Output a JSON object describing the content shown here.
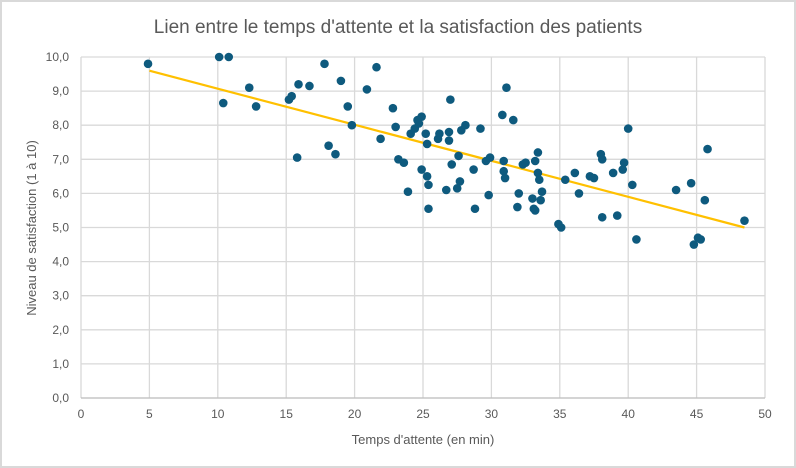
{
  "chart_data": {
    "type": "scatter",
    "title": "Lien entre le temps d'attente et la satisfaction des patients",
    "xlabel": "Temps d'attente (en min)",
    "ylabel": "Niveau de satisfaction (1 à 10)",
    "xlim": [
      0,
      50
    ],
    "ylim": [
      0,
      10
    ],
    "x_ticks": [
      "0",
      "5",
      "10",
      "15",
      "20",
      "25",
      "30",
      "35",
      "40",
      "45",
      "50"
    ],
    "y_ticks": [
      "0,0",
      "1,0",
      "2,0",
      "3,0",
      "4,0",
      "5,0",
      "6,0",
      "7,0",
      "8,0",
      "9,0",
      "10,0"
    ],
    "grid": true,
    "legend": "none",
    "colors": {
      "points": "#0e5a7e",
      "trendline": "#ffc000",
      "grid": "#d9d9d9",
      "text": "#595959"
    },
    "series": [
      {
        "name": "Satisfaction",
        "points": [
          [
            4.9,
            9.8
          ],
          [
            10.1,
            10.0
          ],
          [
            10.8,
            10.0
          ],
          [
            10.4,
            8.65
          ],
          [
            12.3,
            9.1
          ],
          [
            12.8,
            8.55
          ],
          [
            15.2,
            8.75
          ],
          [
            15.4,
            8.85
          ],
          [
            15.9,
            9.2
          ],
          [
            15.8,
            7.05
          ],
          [
            16.7,
            9.15
          ],
          [
            17.8,
            9.8
          ],
          [
            18.1,
            7.4
          ],
          [
            18.6,
            7.15
          ],
          [
            19.0,
            9.3
          ],
          [
            19.5,
            8.55
          ],
          [
            19.8,
            8.0
          ],
          [
            20.9,
            9.05
          ],
          [
            21.6,
            9.7
          ],
          [
            21.9,
            7.6
          ],
          [
            22.8,
            8.5
          ],
          [
            23.0,
            7.95
          ],
          [
            23.2,
            7.0
          ],
          [
            23.6,
            6.9
          ],
          [
            23.9,
            6.05
          ],
          [
            24.1,
            7.75
          ],
          [
            24.4,
            7.9
          ],
          [
            24.6,
            8.15
          ],
          [
            24.9,
            8.25
          ],
          [
            24.7,
            8.05
          ],
          [
            25.2,
            7.75
          ],
          [
            25.3,
            7.45
          ],
          [
            25.3,
            6.5
          ],
          [
            25.4,
            6.25
          ],
          [
            25.4,
            5.55
          ],
          [
            24.9,
            6.7
          ],
          [
            26.2,
            7.75
          ],
          [
            26.1,
            7.6
          ],
          [
            26.9,
            7.8
          ],
          [
            26.9,
            7.55
          ],
          [
            27.0,
            8.75
          ],
          [
            27.1,
            6.85
          ],
          [
            26.7,
            6.1
          ],
          [
            27.6,
            7.1
          ],
          [
            27.7,
            6.35
          ],
          [
            27.5,
            6.15
          ],
          [
            27.8,
            7.85
          ],
          [
            28.1,
            8.0
          ],
          [
            28.7,
            6.7
          ],
          [
            28.8,
            5.55
          ],
          [
            29.2,
            7.9
          ],
          [
            29.6,
            6.95
          ],
          [
            29.9,
            7.05
          ],
          [
            29.8,
            5.95
          ],
          [
            30.8,
            8.3
          ],
          [
            30.9,
            6.95
          ],
          [
            30.9,
            6.65
          ],
          [
            31.0,
            6.45
          ],
          [
            31.1,
            9.1
          ],
          [
            31.6,
            8.15
          ],
          [
            31.9,
            5.6
          ],
          [
            32.0,
            6.0
          ],
          [
            32.3,
            6.85
          ],
          [
            32.5,
            6.9
          ],
          [
            33.0,
            5.85
          ],
          [
            33.1,
            5.55
          ],
          [
            33.2,
            5.5
          ],
          [
            33.2,
            6.95
          ],
          [
            33.4,
            7.2
          ],
          [
            33.4,
            6.6
          ],
          [
            33.5,
            6.4
          ],
          [
            33.6,
            5.8
          ],
          [
            33.7,
            6.05
          ],
          [
            34.9,
            5.1
          ],
          [
            35.1,
            5.0
          ],
          [
            35.4,
            6.4
          ],
          [
            36.1,
            6.6
          ],
          [
            36.4,
            6.0
          ],
          [
            37.2,
            6.5
          ],
          [
            37.5,
            6.45
          ],
          [
            38.0,
            7.15
          ],
          [
            38.1,
            7.0
          ],
          [
            38.1,
            5.3
          ],
          [
            38.9,
            6.6
          ],
          [
            39.2,
            5.35
          ],
          [
            39.6,
            6.7
          ],
          [
            39.7,
            6.9
          ],
          [
            40.0,
            7.9
          ],
          [
            40.3,
            6.25
          ],
          [
            40.6,
            4.65
          ],
          [
            43.5,
            6.1
          ],
          [
            44.6,
            6.3
          ],
          [
            44.8,
            4.5
          ],
          [
            45.1,
            4.7
          ],
          [
            45.3,
            4.65
          ],
          [
            45.6,
            5.8
          ],
          [
            45.8,
            7.3
          ],
          [
            48.5,
            5.2
          ]
        ]
      }
    ],
    "trendline": {
      "type": "linear",
      "x_start": 5.0,
      "y_start": 9.6,
      "x_end": 48.5,
      "y_end": 5.0
    }
  }
}
